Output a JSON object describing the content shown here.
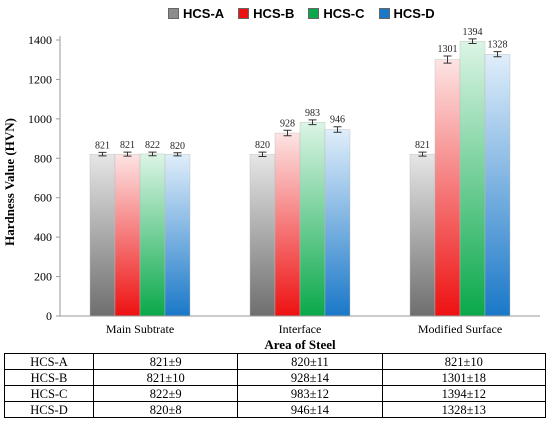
{
  "chart_data": {
    "type": "bar",
    "title": "",
    "xlabel": "Area of Steel",
    "ylabel": "Hardness Value (HVN)",
    "ylim": [
      0,
      1400
    ],
    "yticks": [
      "0",
      "200",
      "400",
      "600",
      "800",
      "1000",
      "1200",
      "1400"
    ],
    "grid": false,
    "legend_position": "top",
    "categories": [
      "Main Subtrate",
      "Interface",
      "Modified Surface"
    ],
    "series": [
      {
        "name": "HCS-A",
        "values": [
          821,
          820,
          821
        ],
        "errors": [
          9,
          11,
          10
        ],
        "labels": [
          "821",
          "820",
          "821"
        ],
        "color_top": "#e6e6e6",
        "color_bottom": "#6e6e6e"
      },
      {
        "name": "HCS-B",
        "values": [
          821,
          928,
          1301
        ],
        "errors": [
          10,
          14,
          18
        ],
        "labels": [
          "821",
          "928",
          "1301"
        ],
        "color_top": "#fde4e4",
        "color_bottom": "#ee1111"
      },
      {
        "name": "HCS-C",
        "values": [
          822,
          983,
          1394
        ],
        "errors": [
          9,
          12,
          12
        ],
        "labels": [
          "822",
          "983",
          "1394"
        ],
        "color_top": "#dcf5e6",
        "color_bottom": "#0aa84a"
      },
      {
        "name": "HCS-D",
        "values": [
          820,
          946,
          1328
        ],
        "errors": [
          8,
          14,
          13
        ],
        "labels": [
          "820",
          "946",
          "1328"
        ],
        "color_top": "#e0eefa",
        "color_bottom": "#1a78c8"
      }
    ]
  },
  "legend": [
    {
      "label": "HCS-A",
      "color": "#8c8c8c"
    },
    {
      "label": "HCS-B",
      "color": "#ee1111"
    },
    {
      "label": "HCS-C",
      "color": "#0aa84a"
    },
    {
      "label": "HCS-D",
      "color": "#1a78c8"
    }
  ],
  "table": {
    "rows": [
      {
        "label": "HCS-A",
        "cells": [
          "821±9",
          "820±11",
          "821±10"
        ]
      },
      {
        "label": "HCS-B",
        "cells": [
          "821±10",
          "928±14",
          "1301±18"
        ]
      },
      {
        "label": "HCS-C",
        "cells": [
          "822±9",
          "983±12",
          "1394±12"
        ]
      },
      {
        "label": "HCS-D",
        "cells": [
          "820±8",
          "946±14",
          "1328±13"
        ]
      }
    ]
  }
}
